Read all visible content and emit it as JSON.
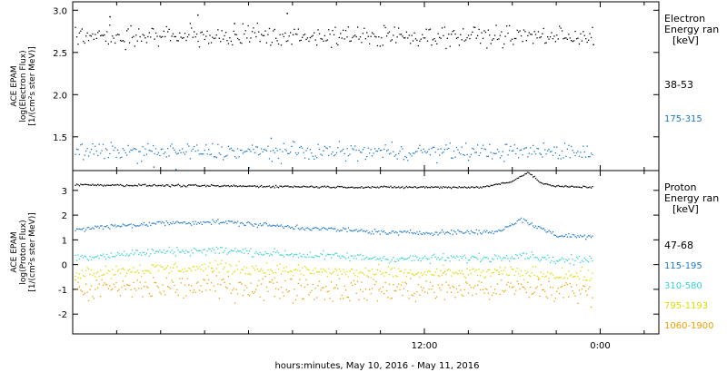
{
  "xaxis": {
    "label": "hours:minutes, May 10, 2016 - May 11, 2016",
    "range_hours": [
      0,
      40
    ],
    "tick_labels": [
      {
        "hour": 24,
        "label": "12:00"
      },
      {
        "hour": 36,
        "label": "0:00"
      }
    ],
    "data_end_hour": 35.5
  },
  "chart_data": [
    {
      "type": "scatter",
      "panel": "electron",
      "ylabel_lines": [
        "ACE EPAM",
        "log(Electron Flux)",
        "[1/(cm²s ster MeV)]"
      ],
      "ylim": [
        1.1,
        3.1
      ],
      "yticks": [
        1.5,
        2.0,
        2.5,
        3.0
      ],
      "ytick_labels": [
        "1.5",
        "2.0",
        "2.5",
        "3.0"
      ],
      "legend_title": [
        "Electron",
        "Energy ran",
        "[keV]"
      ],
      "series": [
        {
          "name": "38-53",
          "color": "#000000",
          "mean": 2.7,
          "scatter": 0.08,
          "outliers": [
            [
              2.5,
              2.93
            ],
            [
              8.5,
              2.95
            ],
            [
              11.0,
              2.85
            ],
            [
              14.6,
              2.97
            ],
            [
              35.5,
              2.6
            ]
          ]
        },
        {
          "name": "175-315",
          "color": "#1e78c8",
          "mean": 1.33,
          "scatter": 0.07,
          "outliers": [
            [
              5.5,
              1.15
            ],
            [
              7.0,
              1.12
            ],
            [
              12.0,
              1.14
            ],
            [
              13.5,
              1.49
            ]
          ]
        }
      ]
    },
    {
      "type": "scatter",
      "panel": "proton",
      "ylabel_lines": [
        "ACE EPAM",
        "log(Proton Flux)",
        "[1/(cm²s ster MeV)]"
      ],
      "ylim": [
        -2.8,
        3.8
      ],
      "yticks": [
        -2,
        -1,
        0,
        1,
        2,
        3
      ],
      "ytick_labels": [
        "-2",
        "-1",
        "0",
        "1",
        "2",
        "3"
      ],
      "legend_title": [
        "Proton",
        "Energy ran",
        "[keV]"
      ],
      "series": [
        {
          "name": "47-68",
          "color": "#000000",
          "profile": [
            [
              0,
              3.25
            ],
            [
              10,
              3.2
            ],
            [
              20,
              3.15
            ],
            [
              28,
              3.15
            ],
            [
              30,
              3.4
            ],
            [
              31,
              3.75
            ],
            [
              32,
              3.3
            ],
            [
              33,
              3.18
            ],
            [
              35.5,
              3.15
            ]
          ],
          "scatter": 0.03
        },
        {
          "name": "115-195",
          "color": "#1e78c8",
          "profile": [
            [
              0,
              1.45
            ],
            [
              6,
              1.7
            ],
            [
              10,
              1.75
            ],
            [
              16,
              1.5
            ],
            [
              22,
              1.3
            ],
            [
              29,
              1.35
            ],
            [
              30.5,
              1.85
            ],
            [
              31.5,
              1.6
            ],
            [
              33,
              1.2
            ],
            [
              35.5,
              1.15
            ]
          ],
          "scatter": 0.07
        },
        {
          "name": "310-580",
          "color": "#37d2d2",
          "profile": [
            [
              0,
              0.3
            ],
            [
              6,
              0.55
            ],
            [
              10,
              0.6
            ],
            [
              16,
              0.4
            ],
            [
              22,
              0.25
            ],
            [
              29,
              0.3
            ],
            [
              30.5,
              0.45
            ],
            [
              33,
              0.2
            ],
            [
              35.5,
              0.2
            ]
          ],
          "scatter": 0.12
        },
        {
          "name": "795-1193",
          "color": "#dcdc00",
          "profile": [
            [
              0,
              -0.3
            ],
            [
              6,
              -0.15
            ],
            [
              10,
              -0.1
            ],
            [
              16,
              -0.25
            ],
            [
              22,
              -0.35
            ],
            [
              30,
              -0.3
            ],
            [
              35.5,
              -0.45
            ]
          ],
          "scatter": 0.18
        },
        {
          "name": "1060-1900",
          "color": "#f0a000",
          "profile": [
            [
              0,
              -1.0
            ],
            [
              10,
              -0.85
            ],
            [
              20,
              -1.0
            ],
            [
              30,
              -0.95
            ],
            [
              35.5,
              -1.1
            ]
          ],
          "scatter": 0.35
        }
      ]
    }
  ]
}
